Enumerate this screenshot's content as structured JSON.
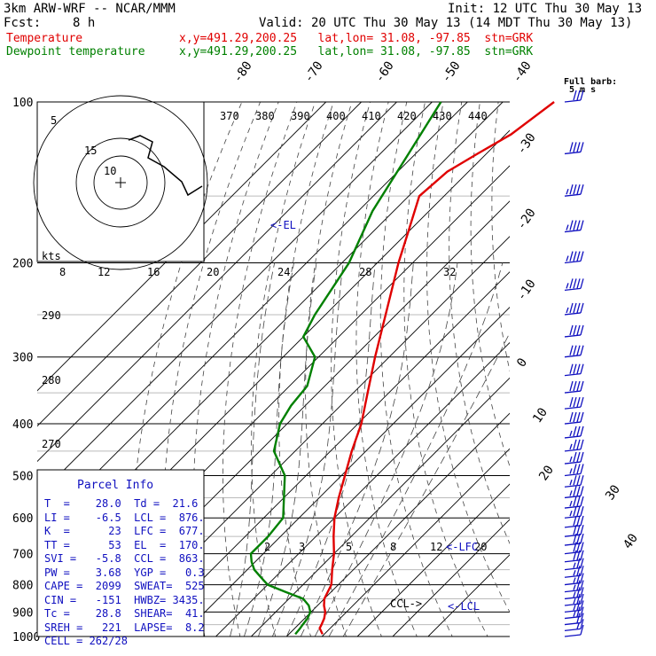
{
  "header": {
    "model": "3km ARW-WRF -- NCAR/MMM",
    "init": "Init: 12 UTC Thu 30 May 13",
    "fcst_label": "Fcst:",
    "fcst_value": "8 h",
    "valid": "Valid: 20 UTC Thu 30 May 13 (14 MDT Thu 30 May 13)",
    "lines": [
      {
        "name": "Temperature",
        "info": "x,y=491.29,200.25   lat,lon= 31.08, -97.85  stn=GRK",
        "color": "#e00000"
      },
      {
        "name": "Dewpoint temperature",
        "info": "x,y=491.29,200.25   lat,lon= 31.08, -97.85  stn=GRK",
        "color": "#008000"
      }
    ]
  },
  "parcel": {
    "title": "Parcel Info",
    "rows": [
      "T  =    28.0  Td =  21.6",
      "LI =    -6.5  LCL =  876.",
      "K  =      23  LFC =  677.",
      "TT =      53  EL  =  170.",
      "SVI =   -5.8  CCL =  863.",
      "PW =    3.68  YGP =   0.3",
      "CAPE =  2099  SWEAT=  525",
      "CIN =   -151  HWBZ= 3435.",
      "Tc =    28.8  SHEAR=  41.",
      "SREH =   221  LAPSE=  8.2",
      "CELL = 262/28"
    ]
  },
  "chart_data": {
    "type": "line",
    "subtype": "skew-T log-P sounding",
    "y_axis": {
      "scale": "log",
      "ticks": [
        100,
        200,
        300,
        400,
        500,
        600,
        700,
        800,
        900,
        1000
      ]
    },
    "isotherm_labels": [
      "-80",
      "-70",
      "-60",
      "-50",
      "-40",
      "-30",
      "-20",
      "-10",
      "0",
      "10",
      "20",
      "30",
      "40"
    ],
    "theta_labels": [
      "370",
      "380",
      "390",
      "400",
      "410",
      "420",
      "430",
      "440"
    ],
    "dry_adiabat_labels": [
      "290",
      "280",
      "270"
    ],
    "mixing_ratio_labels_upper": [
      "8",
      "12",
      "16",
      "20",
      "24",
      "28",
      "32"
    ],
    "mixing_ratio_labels_lower": [
      "2",
      "3",
      "5",
      "8",
      "12",
      "20"
    ],
    "annotations": {
      "el": "<-EL",
      "lfc": "<-LFC",
      "ccl": "CCL->",
      "lcl": "<-LCL",
      "hodo_units": "kts",
      "hodo_rings": [
        "5",
        "10",
        "15"
      ],
      "full_barb": "Full barb:",
      "barb_units": "5 m s"
    },
    "series": [
      {
        "name": "Temperature",
        "color": "#e00000",
        "p": [
          990,
          965,
          950,
          925,
          900,
          875,
          850,
          800,
          750,
          700,
          650,
          600,
          550,
          500,
          450,
          400,
          350,
          300,
          250,
          200,
          175,
          150,
          135,
          125,
          115,
          100
        ],
        "t": [
          29.5,
          27.0,
          26.5,
          25.5,
          24.0,
          21.8,
          20.0,
          18.0,
          14.0,
          10.0,
          5.0,
          0.0,
          -4.5,
          -9.0,
          -14.0,
          -19.0,
          -26.0,
          -34.0,
          -43.0,
          -54.0,
          -60.0,
          -67.0,
          -66.0,
          -62.5,
          -58.5,
          -55.5
        ]
      },
      {
        "name": "Dewpoint temperature",
        "color": "#008000",
        "p": [
          990,
          965,
          950,
          925,
          900,
          875,
          850,
          825,
          800,
          775,
          750,
          725,
          700,
          650,
          600,
          550,
          500,
          450,
          400,
          370,
          340,
          300,
          275,
          250,
          200,
          160,
          125,
          100
        ],
        "t": [
          21.8,
          21.5,
          21.2,
          20.8,
          19.8,
          17.5,
          14.0,
          7.0,
          0.0,
          -4.0,
          -8.0,
          -11.0,
          -13.5,
          -13.5,
          -14.5,
          -20.0,
          -26.0,
          -36.0,
          -42.0,
          -44.0,
          -45.0,
          -51.0,
          -60.0,
          -63.0,
          -68.0,
          -76.0,
          -82.0,
          -87.5
        ]
      }
    ],
    "wind_barbs": {
      "p": [
        1000,
        975,
        950,
        925,
        900,
        875,
        850,
        825,
        800,
        775,
        750,
        725,
        700,
        675,
        650,
        625,
        600,
        575,
        550,
        525,
        500,
        475,
        450,
        425,
        400,
        375,
        350,
        325,
        300,
        275,
        250,
        225,
        200,
        175,
        150,
        125,
        100
      ],
      "speed_kts": [
        10,
        15,
        20,
        25,
        25,
        25,
        25,
        25,
        25,
        25,
        25,
        30,
        30,
        30,
        30,
        30,
        35,
        35,
        35,
        35,
        35,
        35,
        35,
        35,
        40,
        40,
        40,
        40,
        40,
        40,
        45,
        45,
        45,
        45,
        45,
        40,
        30
      ]
    }
  }
}
